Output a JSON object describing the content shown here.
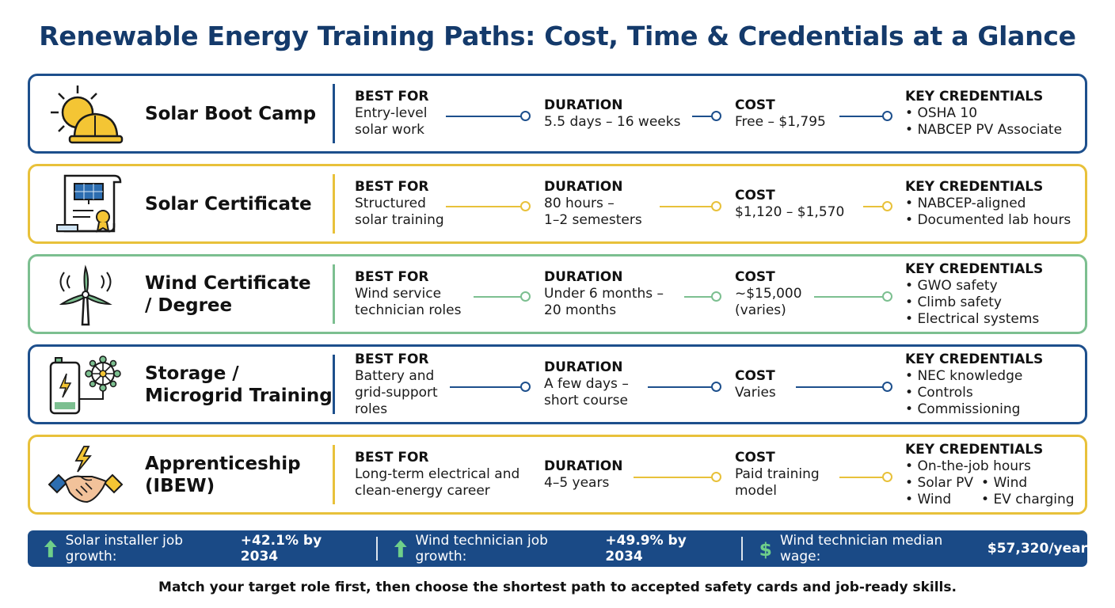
{
  "title": "Renewable Energy Training Paths: Cost, Time & Credentials at a Glance",
  "colors": {
    "navy": "#1d4f8c",
    "gold": "#e8c13a",
    "green": "#7cbf90",
    "title": "#143a6b",
    "bar": "#1a4a86",
    "stat_icon": "#6fcf8a"
  },
  "labels": {
    "best_for": "BEST FOR",
    "duration": "DURATION",
    "cost": "COST",
    "key_credentials": "KEY CREDENTIALS"
  },
  "paths": [
    {
      "name": "Solar Boot Camp",
      "icon": "sun-hardhat-icon",
      "best_for": "Entry-level\nsolar work",
      "duration": "5.5 days – 16 weeks",
      "cost": "Free – $1,795",
      "credentials": [
        "OSHA 10",
        "NABCEP PV Associate"
      ]
    },
    {
      "name": "Solar Certificate",
      "icon": "solar-certificate-icon",
      "best_for": "Structured\nsolar training",
      "duration": "80 hours –\n1–2 semesters",
      "cost": "$1,120 – $1,570",
      "credentials": [
        "NABCEP-aligned",
        "Documented lab hours"
      ]
    },
    {
      "name": "Wind Certificate\n/ Degree",
      "icon": "wind-turbine-icon",
      "best_for": "Wind service\ntechnician roles",
      "duration": "Under 6 months –\n20 months",
      "cost": "~$15,000\n(varies)",
      "credentials": [
        "GWO safety",
        "Climb safety",
        "Electrical systems"
      ]
    },
    {
      "name": "Storage /\nMicrogrid Training",
      "icon": "battery-microgrid-icon",
      "best_for": "Battery and\ngrid-support roles",
      "duration": "A few days –\nshort course",
      "cost": "Varies",
      "credentials": [
        "NEC knowledge",
        "Controls",
        "Commissioning"
      ]
    },
    {
      "name": "Apprenticeship\n(IBEW)",
      "icon": "handshake-lightning-icon",
      "best_for": "Long-term electrical and\nclean-energy career",
      "duration": "4–5 years",
      "cost": "Paid training\nmodel",
      "credentials": [
        "On-the-job hours",
        "Solar PV",
        "Wind",
        "Wind",
        "EV charging"
      ]
    }
  ],
  "stats": [
    {
      "icon": "arrow-up-icon",
      "text": "Solar installer job growth:",
      "value": "+42.1% by 2034"
    },
    {
      "icon": "arrow-up-icon",
      "text": "Wind technician job growth:",
      "value": "+49.9% by 2034"
    },
    {
      "icon": "dollar-icon",
      "text": "Wind technician median wage:",
      "value": "$57,320/year"
    }
  ],
  "footer": "Match your target role first, then choose the shortest path to accepted safety cards and job-ready skills."
}
